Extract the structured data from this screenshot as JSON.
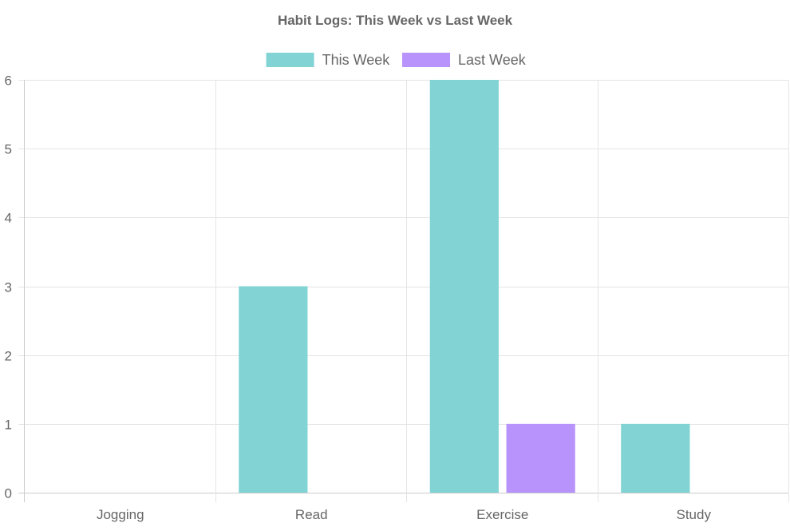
{
  "chart_data": {
    "type": "bar",
    "title": "Habit Logs: This Week vs Last Week",
    "xlabel": "",
    "ylabel": "",
    "categories": [
      "Jogging",
      "Read",
      "Exercise",
      "Study"
    ],
    "series": [
      {
        "name": "This Week",
        "values": [
          0,
          3,
          6,
          1
        ],
        "color": "#81D3D4"
      },
      {
        "name": "Last Week",
        "values": [
          0,
          0,
          1,
          0
        ],
        "color": "#B893FC"
      }
    ],
    "ylim": [
      0,
      6
    ],
    "y_ticks": [
      0,
      1,
      2,
      3,
      4,
      5,
      6
    ],
    "grid": true,
    "legend_position": "top-center",
    "gridline_color": "#e5e5e5",
    "text_color": "#666666"
  }
}
